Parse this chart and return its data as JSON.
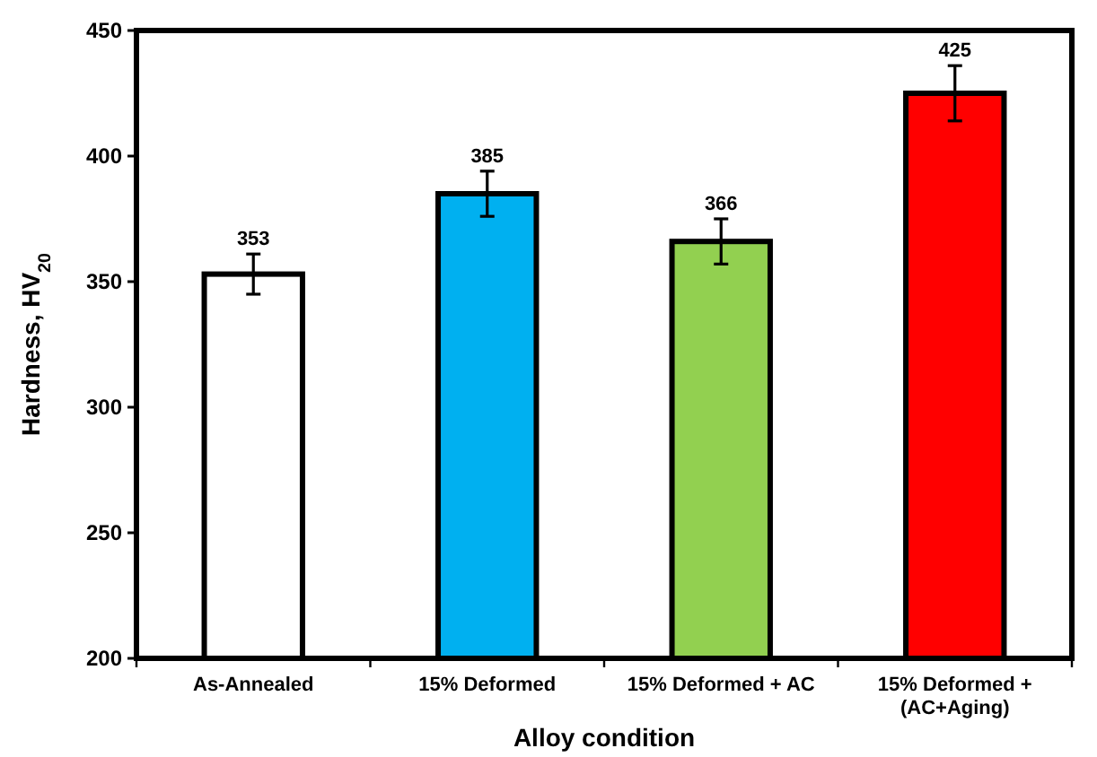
{
  "chart_data": {
    "type": "bar",
    "xlabel": "Alloy condition",
    "ylabel": "Hardness, HV$_{20}$",
    "categories": [
      "As-Annealed",
      "15% Deformed",
      "15% Deformed + AC",
      "15% Deformed + (AC+Aging)"
    ],
    "values": [
      353,
      385,
      366,
      425
    ],
    "colors": [
      "#ffffff",
      "#00b0f0",
      "#92d050",
      "#ff0000"
    ],
    "errors": [
      8,
      9,
      9,
      11
    ],
    "data_labels": true,
    "ylim": [
      200,
      450
    ],
    "yticks": [
      200,
      250,
      300,
      350,
      400,
      450
    ]
  }
}
